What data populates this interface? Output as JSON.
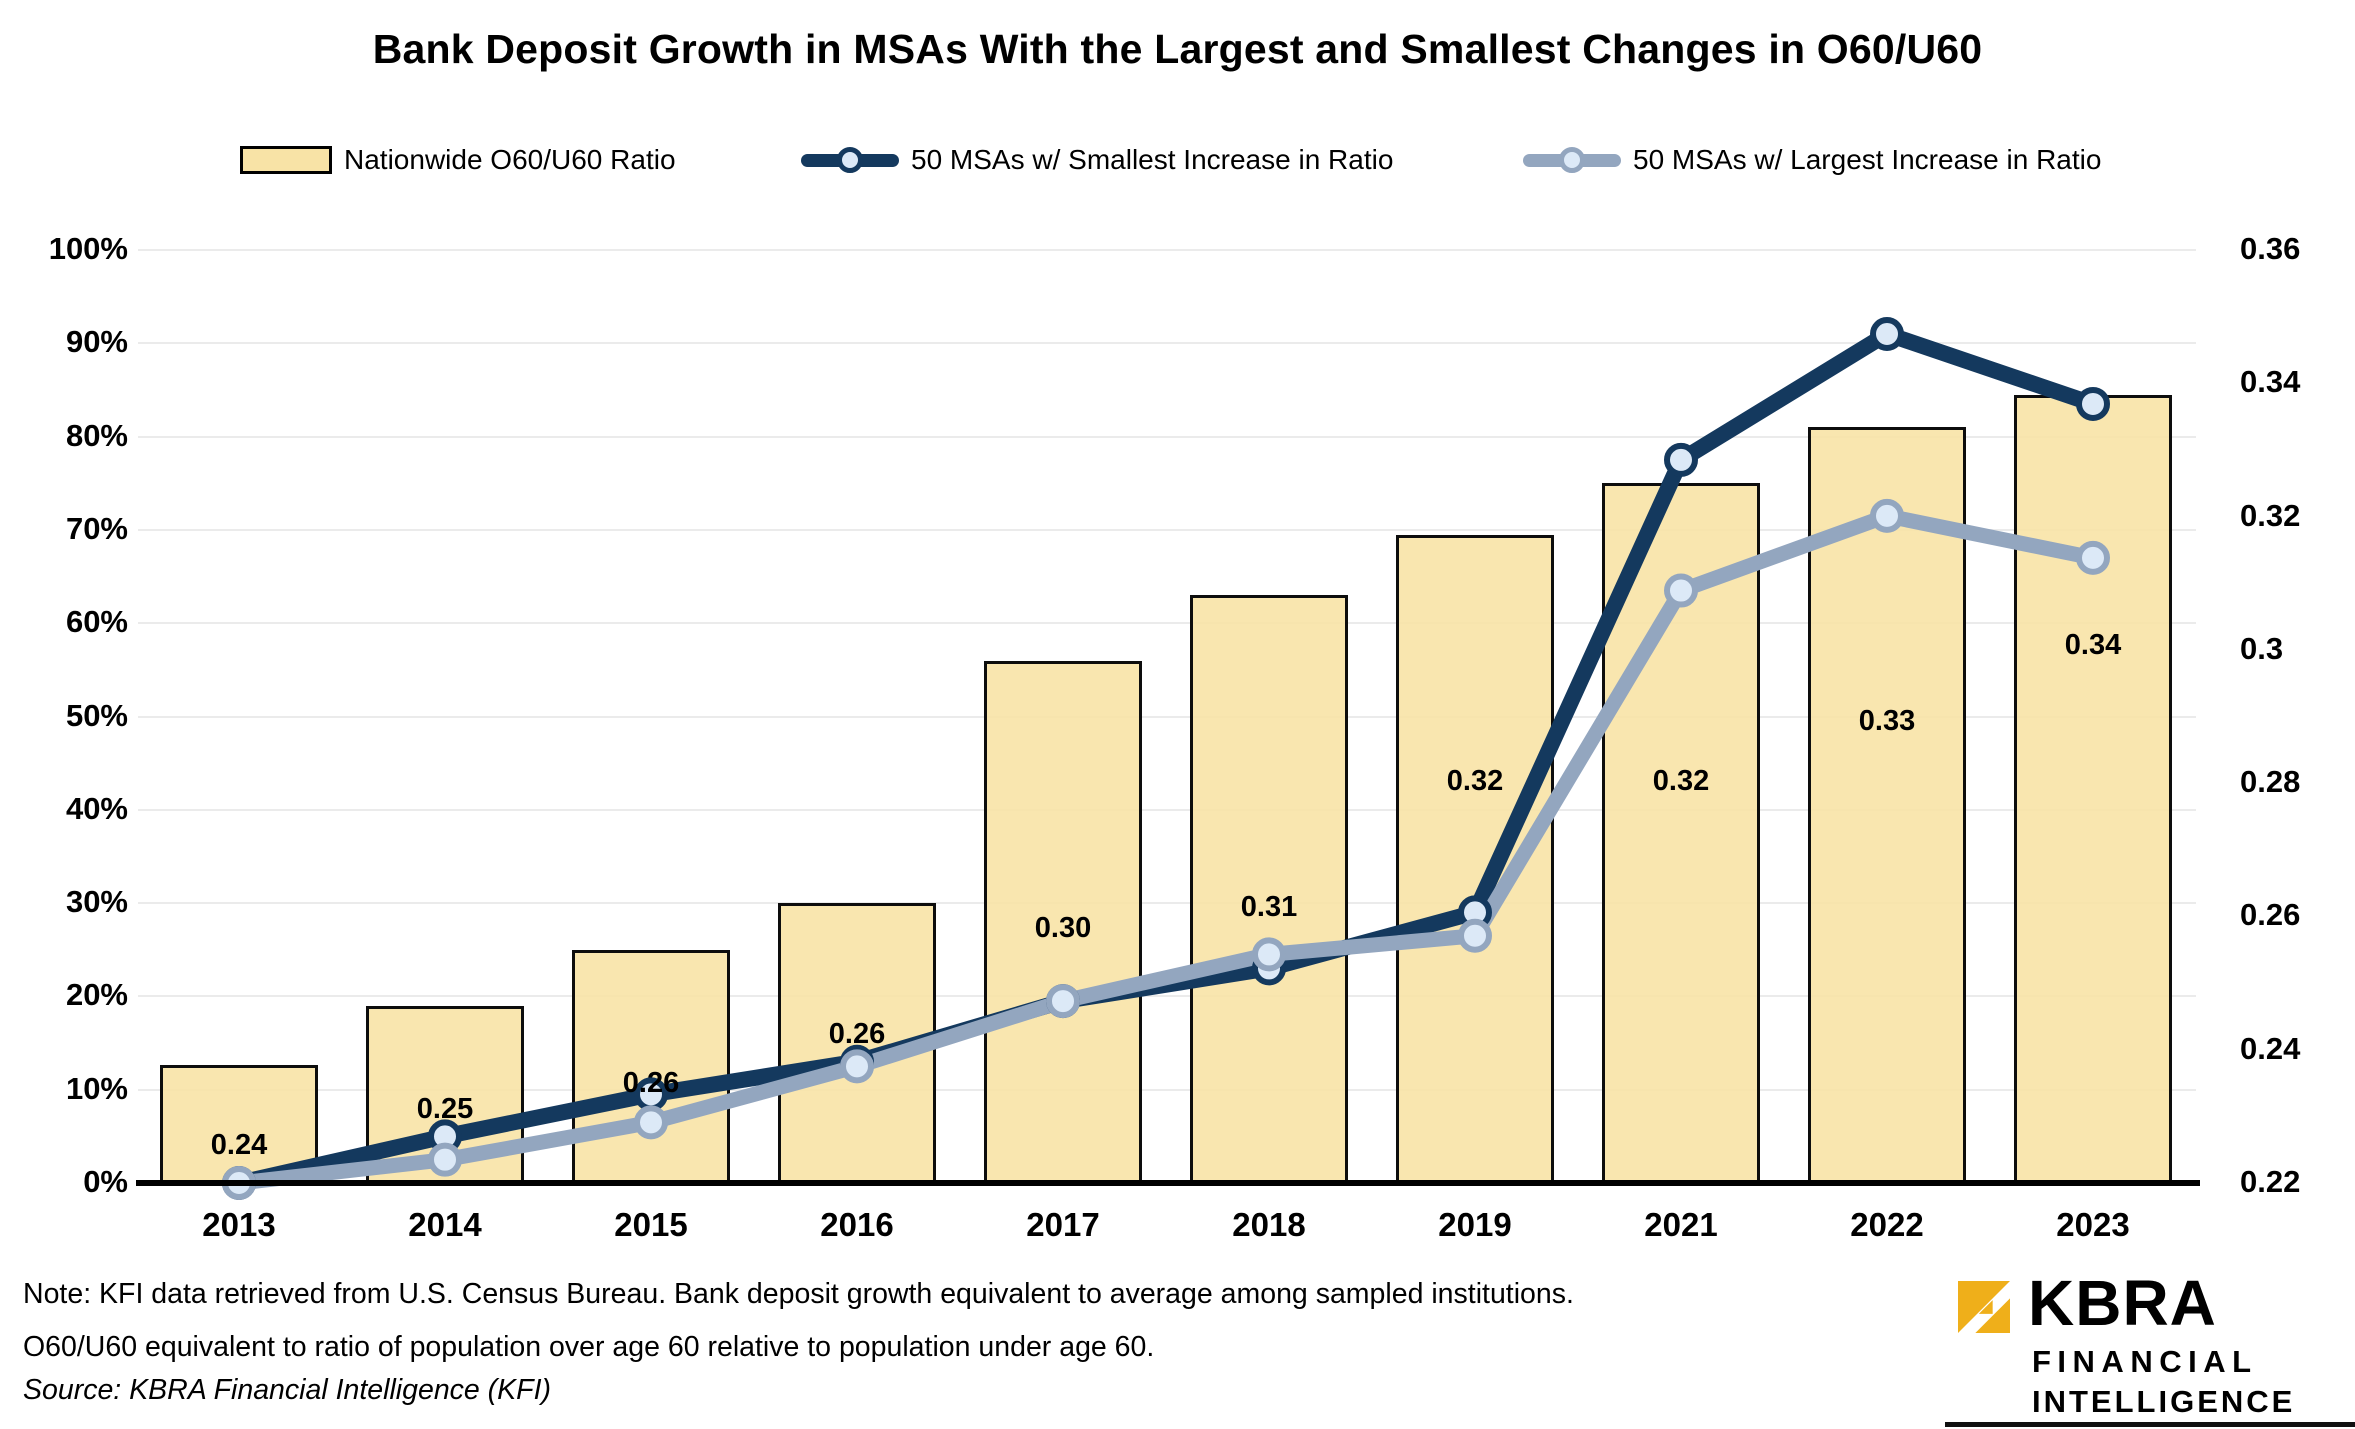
{
  "title": "Bank Deposit Growth in MSAs With the Largest and Smallest Changes in O60/U60",
  "legend": {
    "items": [
      {
        "label": "Nationwide O60/U60 Ratio",
        "type": "bar"
      },
      {
        "label": "50 MSAs w/ Smallest Increase in Ratio",
        "type": "line"
      },
      {
        "label": "50 MSAs w/ Largest Increase in Ratio",
        "type": "line"
      }
    ]
  },
  "chart_data": {
    "type": "bar",
    "subtype": "combo-bar-line",
    "categories": [
      "2013",
      "2014",
      "2015",
      "2016",
      "2017",
      "2018",
      "2019",
      "2021",
      "2022",
      "2023"
    ],
    "series": [
      {
        "name": "Nationwide O60/U60 Ratio",
        "type": "bar",
        "axis": "right",
        "color": "#F8E3A6",
        "border_color": "#0d0d0d",
        "values": [
          0.24,
          0.25,
          0.26,
          0.26,
          0.3,
          0.31,
          0.32,
          0.32,
          0.33,
          0.34
        ],
        "data_labels": [
          "0.24",
          "0.25",
          "0.26",
          "0.26",
          "0.30",
          "0.31",
          "0.32",
          "0.32",
          "0.33",
          "0.34"
        ],
        "plot_pct": [
          12.7,
          19,
          25,
          30,
          56,
          63,
          69.5,
          75,
          81,
          84.5
        ],
        "label_y_pct": [
          4,
          7.8,
          10.6,
          15.9,
          27.2,
          29.5,
          43,
          43,
          49.4,
          57.6
        ]
      },
      {
        "name": "50 MSAs w/ Smallest Increase in Ratio",
        "type": "line",
        "axis": "left",
        "color": "#14395E",
        "marker_fill": "#DCE9F7",
        "values_pct": [
          0,
          5,
          9.5,
          13,
          19.5,
          23,
          29,
          77.5,
          91,
          83.5
        ]
      },
      {
        "name": "50 MSAs w/ Largest Increase in Ratio",
        "type": "line",
        "axis": "left",
        "color": "#93A6BF",
        "marker_fill": "#DCE9F7",
        "values_pct": [
          0,
          2.5,
          6.5,
          12.5,
          19.5,
          24.5,
          26.5,
          63.5,
          71.5,
          67
        ]
      }
    ],
    "left_axis": {
      "ticks": [
        "0%",
        "10%",
        "20%",
        "30%",
        "40%",
        "50%",
        "60%",
        "70%",
        "80%",
        "90%",
        "100%"
      ],
      "min": 0,
      "max": 100
    },
    "right_axis": {
      "ticks": [
        "0.36",
        "0.34",
        "0.32",
        "0.3",
        "0.28",
        "0.26",
        "0.24",
        "0.22"
      ],
      "min": 0.22,
      "max": 0.36
    },
    "grid": true,
    "legend_position": "top"
  },
  "notes": {
    "line1": "Note: KFI data retrieved from U.S. Census Bureau. Bank deposit growth equivalent to average among sampled institutions.",
    "line2": "O60/U60 equivalent to ratio of population over age 60 relative to population under age 60.",
    "source": "Source: KBRA Financial Intelligence (KFI)"
  },
  "logo": {
    "word": "KBRA",
    "line1": "FINANCIAL",
    "line2": "INTELLIGENCE",
    "gold": "#EFAF1A"
  }
}
